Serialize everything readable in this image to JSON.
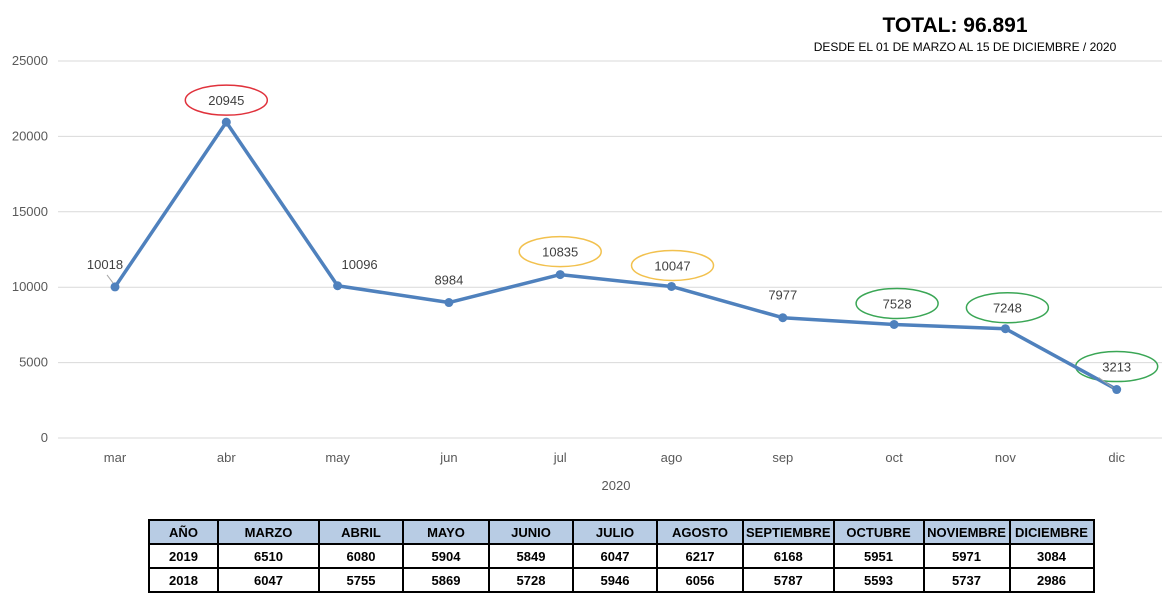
{
  "header": {
    "total": "TOTAL: 96.891",
    "subtitle": "DESDE EL 01 DE MARZO AL 15 DE DICIEMBRE / 2020"
  },
  "chart_data": {
    "type": "line",
    "categories": [
      "mar",
      "abr",
      "may",
      "jun",
      "jul",
      "ago",
      "sep",
      "oct",
      "nov",
      "dic"
    ],
    "values": [
      10018,
      20945,
      10096,
      8984,
      10835,
      10047,
      7977,
      7528,
      7248,
      3213
    ],
    "xlabel": "2020",
    "ylabel": "",
    "ylim": [
      0,
      25000
    ],
    "yticks": [
      "0",
      "5000",
      "10000",
      "15000",
      "20000",
      "25000"
    ],
    "grid": true,
    "legend": false,
    "colors": {
      "line": "#4f81bd",
      "grid": "#d9d9d9",
      "red": "#e0323c",
      "yellow": "#f2c14e",
      "green": "#3aa655"
    },
    "highlights": [
      "none",
      "red",
      "none",
      "none",
      "yellow",
      "yellow",
      "none",
      "green",
      "green",
      "green"
    ]
  },
  "table": {
    "headers": [
      "AÑO",
      "MARZO",
      "ABRIL",
      "MAYO",
      "JUNIO",
      "JULIO",
      "AGOSTO",
      "SEPTIEMBRE",
      "OCTUBRE",
      "NOVIEMBRE",
      "DICIEMBRE"
    ],
    "rows": [
      [
        "2019",
        "6510",
        "6080",
        "5904",
        "5849",
        "6047",
        "6217",
        "6168",
        "5951",
        "5971",
        "3084"
      ],
      [
        "2018",
        "6047",
        "5755",
        "5869",
        "5728",
        "5946",
        "6056",
        "5787",
        "5593",
        "5737",
        "2986"
      ]
    ]
  }
}
